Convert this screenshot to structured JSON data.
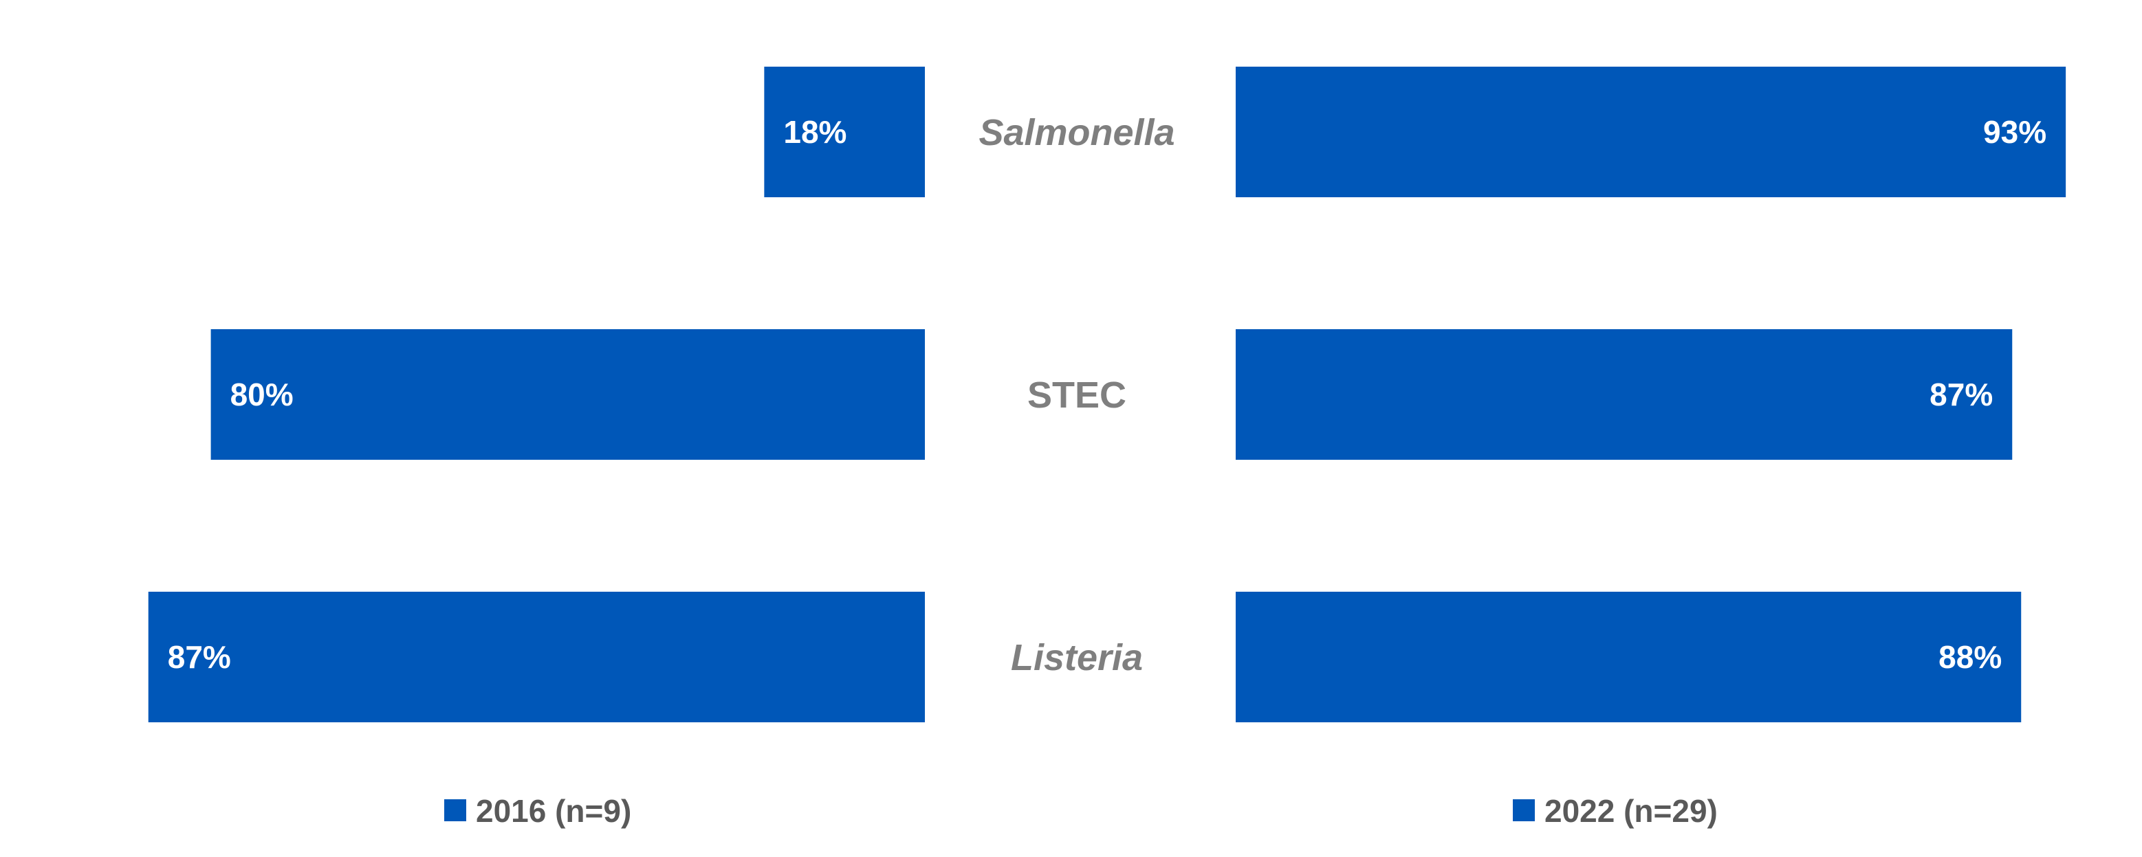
{
  "chart_data": {
    "type": "bar",
    "orientation": "horizontal-butterfly",
    "categories": [
      "Salmonella",
      "STEC",
      "Listeria"
    ],
    "category_italic": [
      true,
      false,
      true
    ],
    "series": [
      {
        "name": "2016 (n=9)",
        "values": [
          18,
          80,
          87
        ],
        "labels": [
          "18%",
          "80%",
          "87%"
        ],
        "side": "left"
      },
      {
        "name": "2022 (n=29)",
        "values": [
          93,
          87,
          88
        ],
        "labels": [
          "93%",
          "87%",
          "88%"
        ],
        "side": "right"
      }
    ],
    "unit": "%",
    "xlim": [
      0,
      100
    ],
    "grid": false,
    "legend_position": "bottom"
  },
  "colors": {
    "bar": "#0057b8",
    "category_text": "#7f7f7f",
    "legend_text": "#595959",
    "value_text": "#ffffff"
  }
}
